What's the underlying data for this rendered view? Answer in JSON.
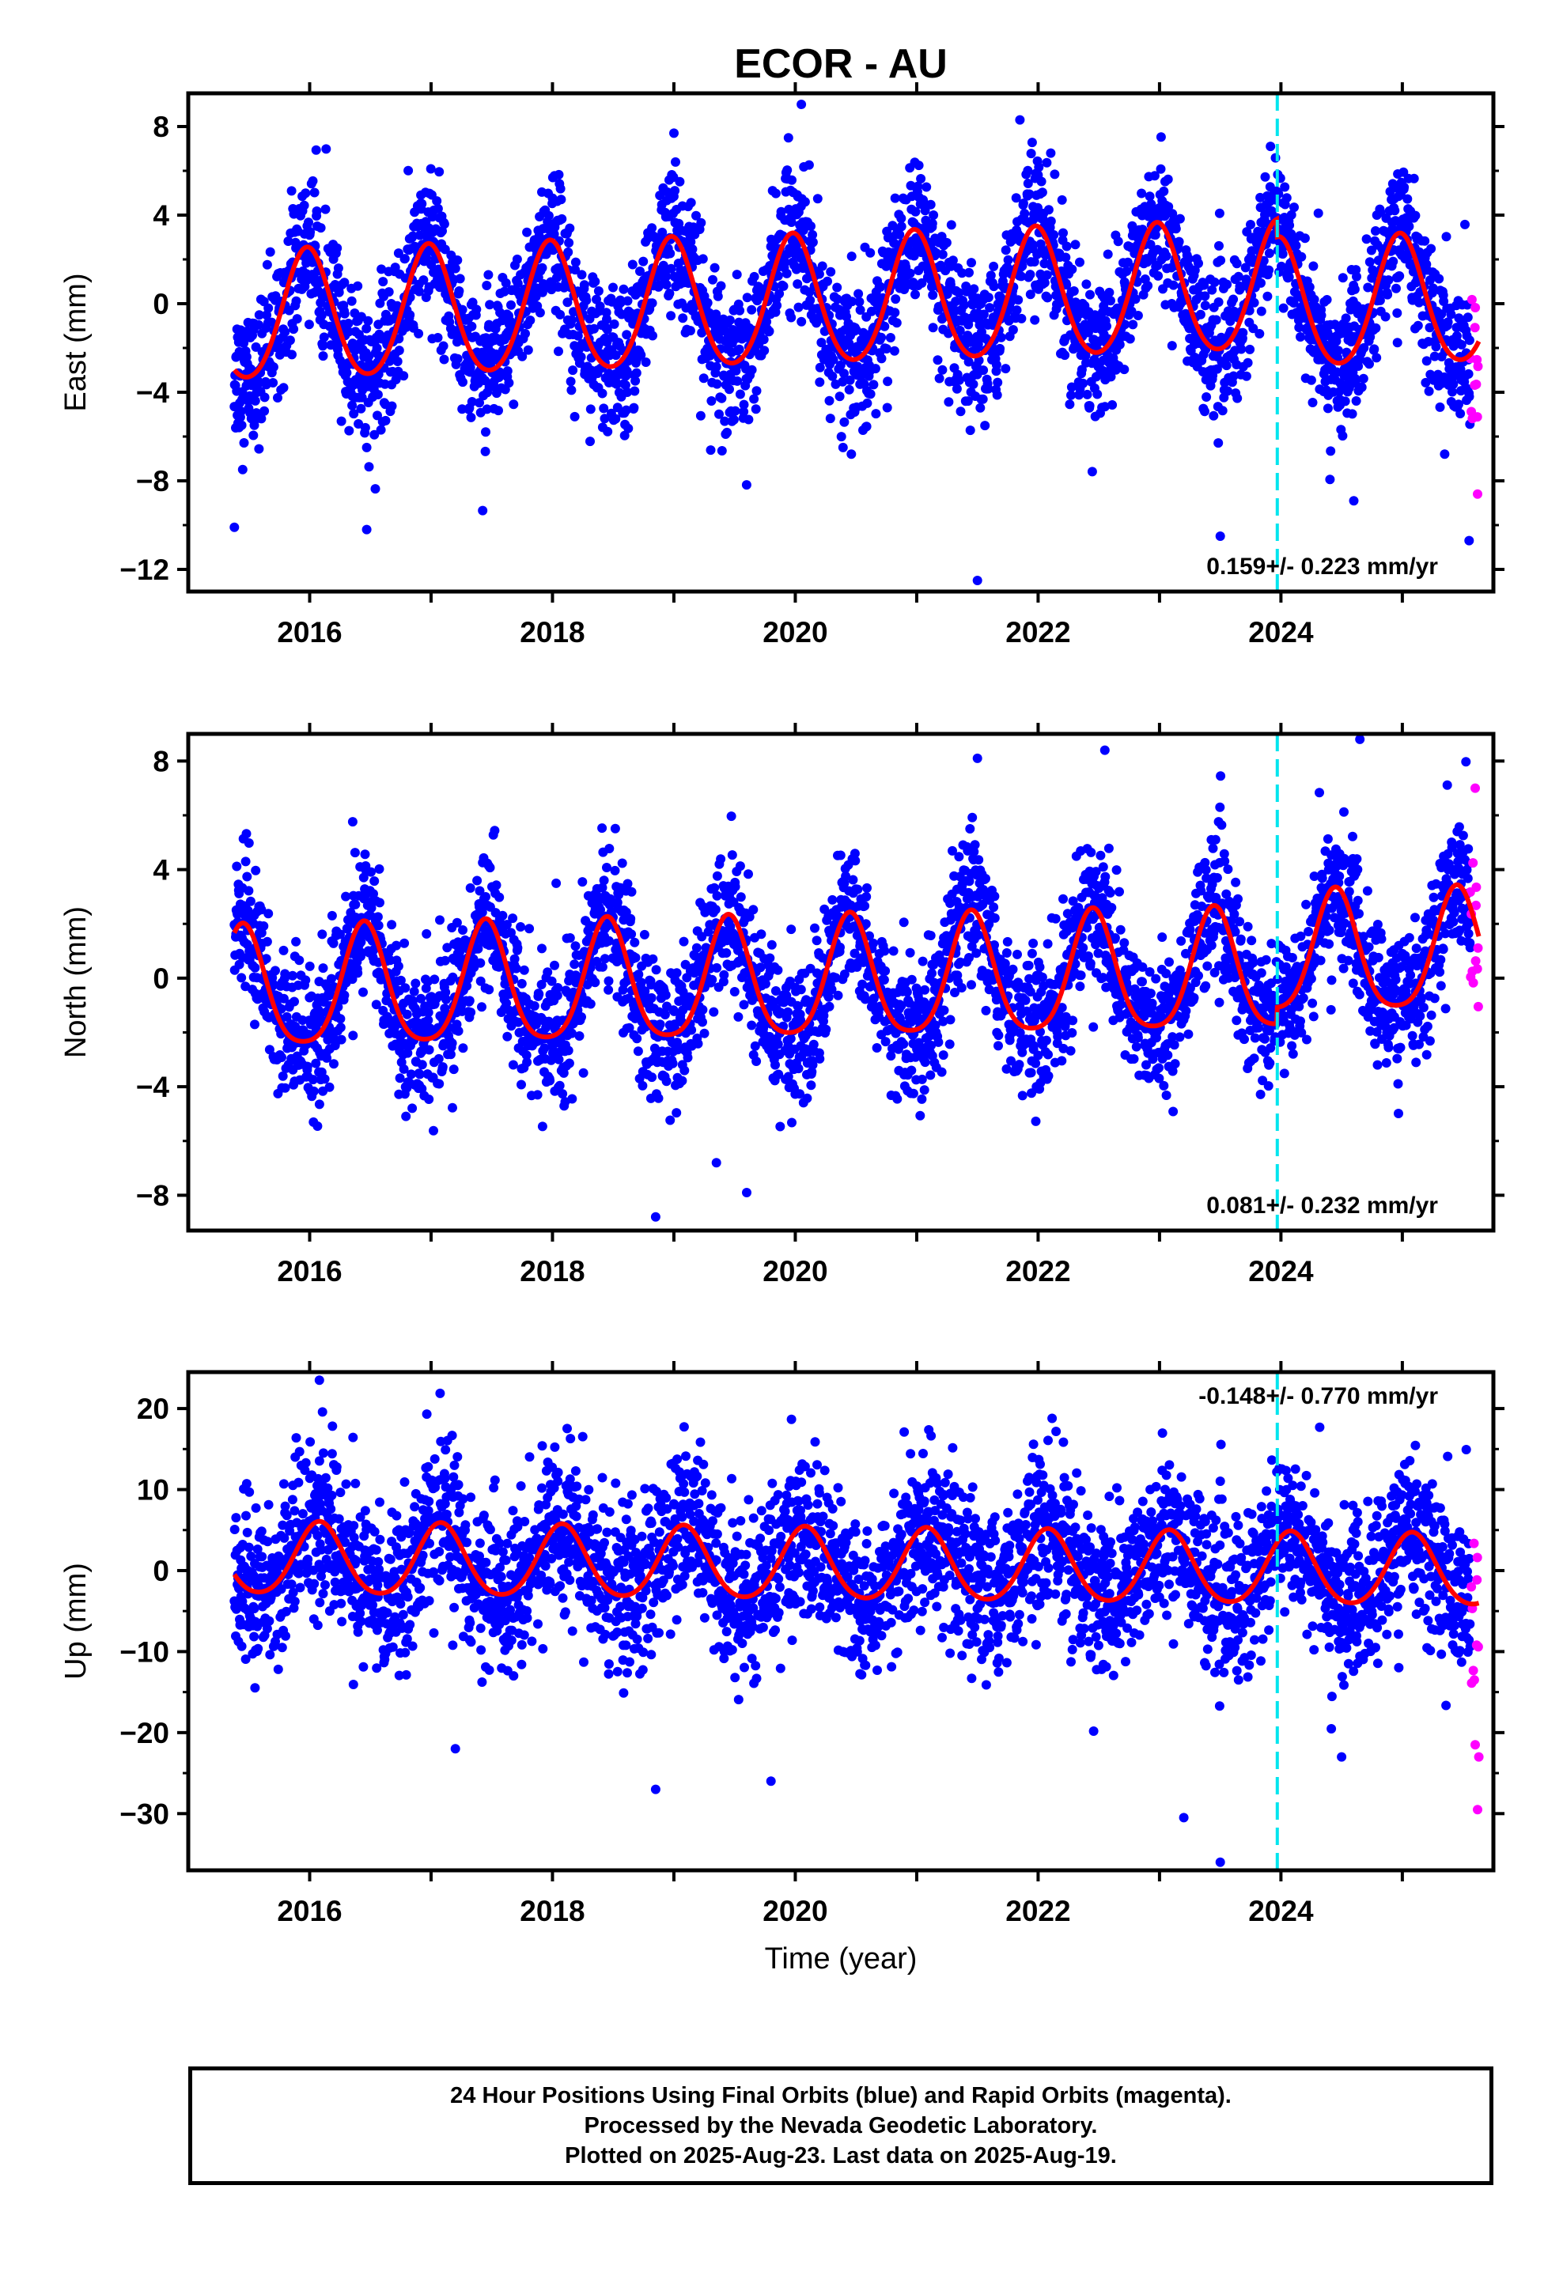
{
  "title": "ECOR - AU",
  "colors": {
    "final": "#0000ff",
    "rapid": "#ff00ff",
    "model": "#ff0000",
    "equipment_change": "#00e5ee"
  },
  "chart_data": [
    {
      "type": "scatter",
      "component": "east",
      "ylabel": "East (mm)",
      "xlabel": "",
      "xlim": [
        2015.0,
        2025.75
      ],
      "ylim": [
        -13,
        9.5
      ],
      "yticks": [
        8,
        4,
        0,
        -4,
        -8,
        -12
      ],
      "xticks": [
        2016,
        2018,
        2020,
        2022,
        2024
      ],
      "xtick_labels": [
        "2016",
        "2018",
        "2020",
        "2022",
        "2024"
      ],
      "rate_text": "0.159+/- 0.223 mm/yr",
      "data_start": 2015.38,
      "data_end": 2025.63,
      "rapid_start": 2025.56,
      "equipment_change": 2023.97,
      "model": {
        "offset": 0.0,
        "trend": 0.159,
        "annual_amp": 2.9,
        "annual_peak": 0.98,
        "semi_amp": 0.3,
        "noise": 1.6
      },
      "model_curve_shift_after_break": -0.8,
      "outliers": [
        [
          2015.38,
          -10.1
        ],
        [
          2016.47,
          -10.2
        ],
        [
          2019.0,
          7.7
        ],
        [
          2020.05,
          9.0
        ],
        [
          2021.5,
          -12.5
        ],
        [
          2021.85,
          8.3
        ],
        [
          2023.5,
          -10.5
        ],
        [
          2025.55,
          -10.7
        ],
        [
          2024.6,
          -8.9
        ],
        [
          2025.62,
          -8.6
        ]
      ]
    },
    {
      "type": "scatter",
      "component": "north",
      "ylabel": "North (mm)",
      "xlabel": "",
      "xlim": [
        2015.0,
        2025.75
      ],
      "ylim": [
        -9.3,
        9.0
      ],
      "yticks": [
        8,
        4,
        0,
        -4,
        -8
      ],
      "xticks": [
        2016,
        2018,
        2020,
        2022,
        2024
      ],
      "xtick_labels": [
        "2016",
        "2018",
        "2020",
        "2022",
        "2024"
      ],
      "rate_text": "0.081+/- 0.232 mm/yr",
      "data_start": 2015.38,
      "data_end": 2025.63,
      "rapid_start": 2025.56,
      "equipment_change": 2023.97,
      "model": {
        "offset": -0.2,
        "trend": 0.081,
        "annual_amp": 2.2,
        "annual_peak": 0.45,
        "semi_amp": 0.4,
        "noise": 1.3
      },
      "model_curve_shift_after_break": 0.6,
      "outliers": [
        [
          2018.85,
          -8.8
        ],
        [
          2019.6,
          -7.9
        ],
        [
          2022.55,
          8.4
        ],
        [
          2024.65,
          8.8
        ],
        [
          2025.6,
          7.0
        ],
        [
          2021.5,
          8.1
        ],
        [
          2019.35,
          -6.8
        ]
      ]
    },
    {
      "type": "scatter",
      "component": "up",
      "ylabel": "Up (mm)",
      "xlabel": "Time (year)",
      "xlim": [
        2015.0,
        2025.75
      ],
      "ylim": [
        -37,
        24.5
      ],
      "yticks": [
        20,
        10,
        0,
        -10,
        -20,
        -30
      ],
      "xticks": [
        2016,
        2018,
        2020,
        2022,
        2024
      ],
      "xtick_labels": [
        "2016",
        "2018",
        "2020",
        "2022",
        "2024"
      ],
      "rate_text": "-0.148+/- 0.770 mm/yr",
      "data_start": 2015.38,
      "data_end": 2025.63,
      "rapid_start": 2025.56,
      "equipment_change": 2023.97,
      "model": {
        "offset": 0.6,
        "trend": -0.148,
        "annual_amp": 4.4,
        "annual_peak": 0.08,
        "semi_amp": 0.5,
        "noise": 5.0
      },
      "model_curve_shift_after_break": 0.0,
      "outliers": [
        [
          2016.08,
          23.5
        ],
        [
          2018.85,
          -27.0
        ],
        [
          2019.8,
          -26.0
        ],
        [
          2023.2,
          -30.5
        ],
        [
          2023.5,
          -36.0
        ],
        [
          2025.62,
          -29.5
        ],
        [
          2025.6,
          -21.5
        ],
        [
          2025.63,
          -23.0
        ],
        [
          2017.2,
          -22.0
        ],
        [
          2024.5,
          -23.0
        ]
      ]
    }
  ],
  "footer": {
    "line1": "24 Hour Positions Using Final Orbits (blue) and Rapid Orbits (magenta).",
    "line2": "Processed by the Nevada Geodetic Laboratory.",
    "line3": "Plotted on 2025-Aug-23. Last data on 2025-Aug-19."
  }
}
